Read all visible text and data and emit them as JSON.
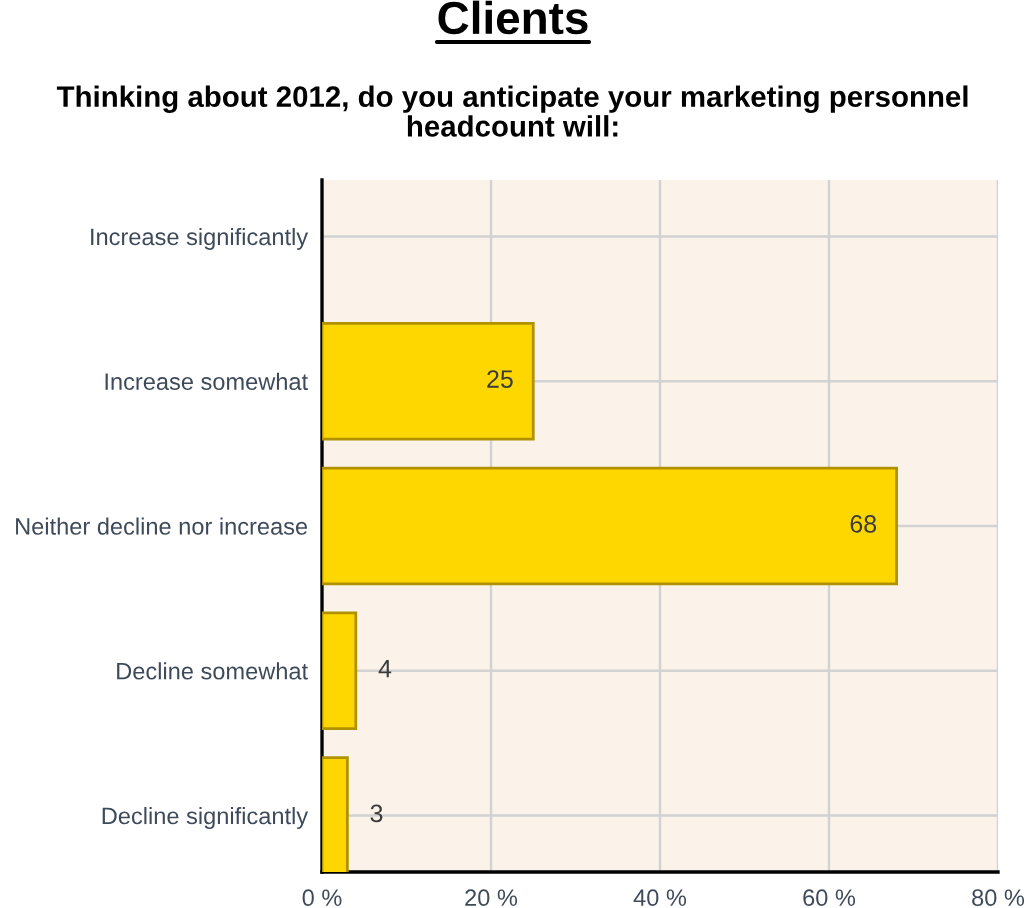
{
  "chart_data": {
    "type": "bar",
    "orientation": "horizontal",
    "title": "Clients",
    "subtitle": "Thinking about 2012, do you anticipate your marketing personnel\nheadcount will:",
    "categories": [
      "Increase significantly",
      "Increase somewhat",
      "Neither decline nor increase",
      "Decline somewhat",
      "Decline significantly"
    ],
    "values": [
      null,
      25,
      68,
      4,
      3
    ],
    "value_labels": [
      null,
      "25",
      "68",
      "4",
      "3"
    ],
    "color": "#ffd700",
    "xlim": [
      0,
      80
    ],
    "xticks": [
      {
        "value": 0,
        "label": "0 %"
      },
      {
        "value": 20,
        "label": "20 %"
      },
      {
        "value": 40,
        "label": "40 %"
      },
      {
        "value": 60,
        "label": "60 %"
      },
      {
        "value": 80,
        "label": "80 %"
      }
    ],
    "grid": true
  }
}
